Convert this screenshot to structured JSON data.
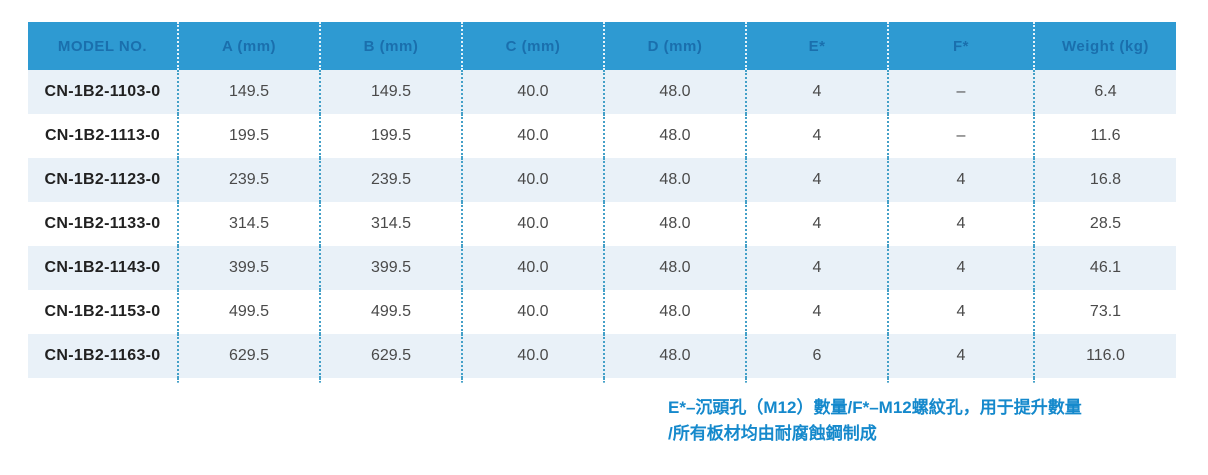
{
  "table": {
    "columns": [
      {
        "label": "MODEL NO."
      },
      {
        "label": "A (mm)"
      },
      {
        "label": "B (mm)"
      },
      {
        "label": "C (mm)"
      },
      {
        "label": "D (mm)"
      },
      {
        "label": "E*"
      },
      {
        "label": "F*"
      },
      {
        "label": "Weight (kg)"
      }
    ],
    "rows": [
      {
        "cells": [
          "CN-1B2-1103-0",
          "149.5",
          "149.5",
          "40.0",
          "48.0",
          "4",
          "–",
          "6.4"
        ]
      },
      {
        "cells": [
          "CN-1B2-1113-0",
          "199.5",
          "199.5",
          "40.0",
          "48.0",
          "4",
          "–",
          "11.6"
        ]
      },
      {
        "cells": [
          "CN-1B2-1123-0",
          "239.5",
          "239.5",
          "40.0",
          "48.0",
          "4",
          "4",
          "16.8"
        ]
      },
      {
        "cells": [
          "CN-1B2-1133-0",
          "314.5",
          "314.5",
          "40.0",
          "48.0",
          "4",
          "4",
          "28.5"
        ]
      },
      {
        "cells": [
          "CN-1B2-1143-0",
          "399.5",
          "399.5",
          "40.0",
          "48.0",
          "4",
          "4",
          "46.1"
        ]
      },
      {
        "cells": [
          "CN-1B2-1153-0",
          "499.5",
          "499.5",
          "40.0",
          "48.0",
          "4",
          "4",
          "73.1"
        ]
      },
      {
        "cells": [
          "CN-1B2-1163-0",
          "629.5",
          "629.5",
          "40.0",
          "48.0",
          "6",
          "4",
          "116.0"
        ]
      }
    ]
  },
  "footnote": {
    "line1": [
      {
        "text": "E*",
        "bold": true
      },
      {
        "text": "–沉頭孔（M12）數量/",
        "bold": false
      },
      {
        "text": "F*",
        "bold": true
      },
      {
        "text": "–M12螺紋孔，用于提升數量",
        "bold": false
      }
    ],
    "line2": "/所有板材均由耐腐蝕鋼制成"
  },
  "colors": {
    "header_bg": "#2e9ad2",
    "header_text": "#1a6fad",
    "row_alt_bg": "#e9f1f8",
    "row_bg": "#ffffff",
    "cell_text": "#4a4a4a",
    "model_text": "#212121",
    "divider_dots": "#44a0c8",
    "header_divider_dots": "#ffffff",
    "footnote_text": "#1589cc"
  }
}
